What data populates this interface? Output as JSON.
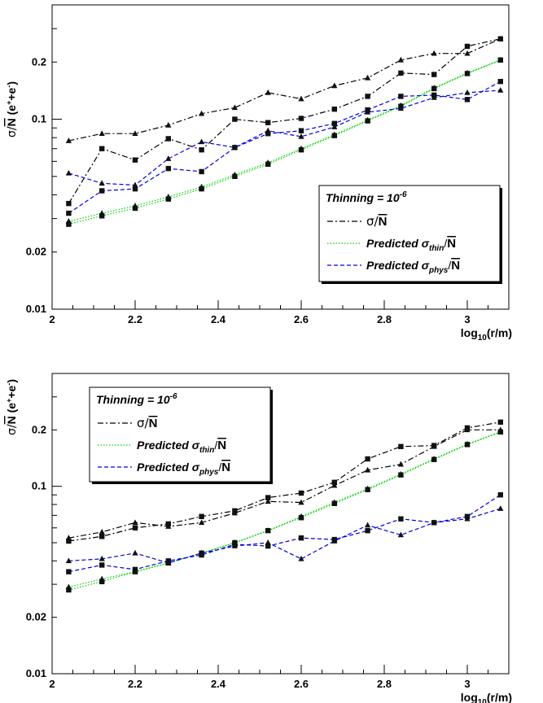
{
  "chart_data": [
    {
      "type": "line",
      "id": "top",
      "xlabel": "log10(r/m)",
      "ylabel": "σ/N̄ (e⁺+e⁻)",
      "xlim": [
        2.0,
        3.1
      ],
      "ylim": [
        0.01,
        0.4
      ],
      "yscale": "log",
      "x_ticks": [
        2.0,
        2.2,
        2.4,
        2.6,
        2.8,
        3.0
      ],
      "x_tick_labels": [
        "2",
        "2.2",
        "2.4",
        "2.6",
        "2.8",
        "3"
      ],
      "y_ticks": [
        0.01,
        0.02,
        0.1,
        0.2
      ],
      "y_tick_labels": [
        "0.01",
        "0.02",
        "0.1",
        "0.2"
      ],
      "legend": {
        "title": "Thinning = 10",
        "title_exp": "-6",
        "placement": "bottom-right",
        "entries": [
          {
            "series": "sigma",
            "text": "σ/",
            "nbar": "N"
          },
          {
            "series": "thin",
            "text": "Predicted σ",
            "sub": "thin",
            "tail": "/",
            "nbar": "N"
          },
          {
            "series": "phys",
            "text": "Predicted σ",
            "sub": "phys",
            "tail": "/",
            "nbar": "N"
          }
        ]
      },
      "x": [
        2.04,
        2.12,
        2.2,
        2.28,
        2.36,
        2.44,
        2.52,
        2.6,
        2.68,
        2.76,
        2.84,
        2.92,
        3.0,
        3.08
      ],
      "series": [
        {
          "key": "sigma",
          "style": "dashdot",
          "color": "#000000",
          "marker": "triangle",
          "values": [
            0.077,
            0.084,
            0.084,
            0.093,
            0.107,
            0.115,
            0.138,
            0.128,
            0.15,
            0.165,
            0.205,
            0.222,
            0.222,
            0.265
          ]
        },
        {
          "key": "sigma",
          "style": "dashdot",
          "color": "#000000",
          "marker": "square",
          "values": [
            0.036,
            0.07,
            0.061,
            0.079,
            0.069,
            0.1,
            0.096,
            0.101,
            0.113,
            0.132,
            0.175,
            0.172,
            0.242,
            0.265
          ]
        },
        {
          "key": "thin",
          "style": "dotted",
          "color": "#00d000",
          "marker": "triangle",
          "values": [
            0.029,
            0.032,
            0.035,
            0.039,
            0.044,
            0.051,
            0.059,
            0.07,
            0.083,
            0.099,
            0.118,
            0.146,
            0.175,
            0.205
          ]
        },
        {
          "key": "thin",
          "style": "dotted",
          "color": "#00d000",
          "marker": "square",
          "values": [
            0.028,
            0.031,
            0.034,
            0.038,
            0.043,
            0.05,
            0.058,
            0.069,
            0.082,
            0.098,
            0.117,
            0.145,
            0.174,
            0.205
          ]
        },
        {
          "key": "phys",
          "style": "dashed",
          "color": "#0000dd",
          "marker": "triangle",
          "values": [
            0.052,
            0.046,
            0.045,
            0.062,
            0.076,
            0.071,
            0.087,
            0.081,
            0.091,
            0.109,
            0.114,
            0.13,
            0.138,
            0.142
          ]
        },
        {
          "key": "phys",
          "style": "dashed",
          "color": "#0000dd",
          "marker": "square",
          "values": [
            0.032,
            0.042,
            0.043,
            0.055,
            0.053,
            0.071,
            0.084,
            0.087,
            0.095,
            0.112,
            0.132,
            0.134,
            0.127,
            0.158
          ]
        }
      ]
    },
    {
      "type": "line",
      "id": "bottom",
      "xlabel": "log10(r/m)",
      "ylabel": "σ/N̄ (e⁺+e⁻)",
      "xlim": [
        2.0,
        3.1
      ],
      "ylim": [
        0.01,
        0.4
      ],
      "yscale": "log",
      "x_ticks": [
        2.0,
        2.2,
        2.4,
        2.6,
        2.8,
        3.0
      ],
      "x_tick_labels": [
        "2",
        "2.2",
        "2.4",
        "2.6",
        "2.8",
        "3"
      ],
      "y_ticks": [
        0.01,
        0.02,
        0.1,
        0.2
      ],
      "y_tick_labels": [
        "0.01",
        "0.02",
        "0.1",
        "0.2"
      ],
      "legend": {
        "title": "Thinning = 10",
        "title_exp": "-6",
        "placement": "top-left",
        "entries": [
          {
            "series": "sigma",
            "text": "σ/",
            "nbar": "N"
          },
          {
            "series": "thin",
            "text": "Predicted σ",
            "sub": "thin",
            "tail": "/",
            "nbar": "N"
          },
          {
            "series": "phys",
            "text": "Predicted σ",
            "sub": "phys",
            "tail": "/",
            "nbar": "N"
          }
        ]
      },
      "x": [
        2.04,
        2.12,
        2.2,
        2.28,
        2.36,
        2.44,
        2.52,
        2.6,
        2.68,
        2.76,
        2.84,
        2.92,
        3.0,
        3.08
      ],
      "series": [
        {
          "key": "sigma",
          "style": "dashdot",
          "color": "#000000",
          "marker": "triangle",
          "values": [
            0.053,
            0.057,
            0.064,
            0.061,
            0.064,
            0.072,
            0.083,
            0.082,
            0.101,
            0.122,
            0.131,
            0.163,
            0.2,
            0.2
          ]
        },
        {
          "key": "sigma",
          "style": "dashdot",
          "color": "#000000",
          "marker": "square",
          "values": [
            0.051,
            0.054,
            0.06,
            0.063,
            0.069,
            0.074,
            0.087,
            0.092,
            0.105,
            0.14,
            0.163,
            0.165,
            0.205,
            0.22
          ]
        },
        {
          "key": "thin",
          "style": "dotted",
          "color": "#00d000",
          "marker": "triangle",
          "values": [
            0.029,
            0.032,
            0.035,
            0.039,
            0.044,
            0.05,
            0.058,
            0.069,
            0.082,
            0.097,
            0.116,
            0.14,
            0.168,
            0.195
          ]
        },
        {
          "key": "thin",
          "style": "dotted",
          "color": "#00d000",
          "marker": "square",
          "values": [
            0.028,
            0.031,
            0.035,
            0.039,
            0.044,
            0.05,
            0.058,
            0.068,
            0.081,
            0.096,
            0.115,
            0.139,
            0.167,
            0.195
          ]
        },
        {
          "key": "phys",
          "style": "dashed",
          "color": "#0000dd",
          "marker": "triangle",
          "values": [
            0.04,
            0.041,
            0.044,
            0.039,
            0.044,
            0.048,
            0.05,
            0.041,
            0.051,
            0.062,
            0.055,
            0.064,
            0.067,
            0.076
          ]
        },
        {
          "key": "phys",
          "style": "dashed",
          "color": "#0000dd",
          "marker": "square",
          "values": [
            0.035,
            0.038,
            0.036,
            0.04,
            0.043,
            0.049,
            0.048,
            0.053,
            0.052,
            0.058,
            0.067,
            0.064,
            0.069,
            0.09
          ]
        }
      ]
    }
  ]
}
